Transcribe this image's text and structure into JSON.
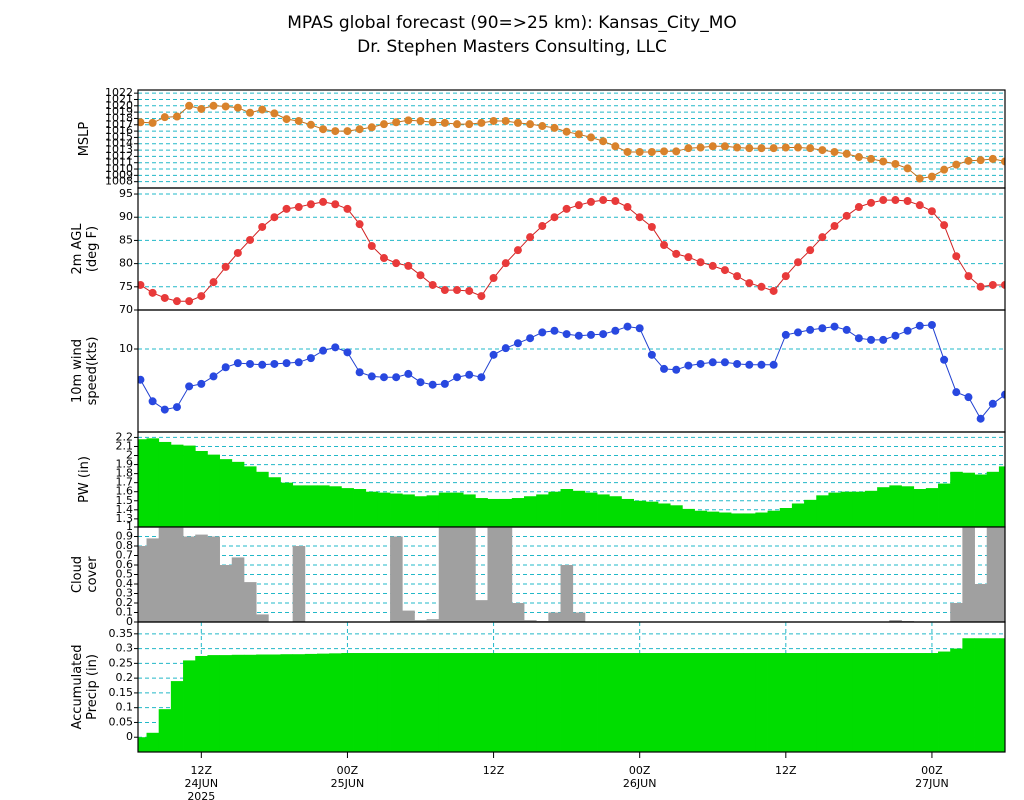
{
  "title": "MPAS global forecast (90=>25 km): Kansas_City_MO",
  "subtitle": "Dr. Stephen Masters Consulting, LLC",
  "time_axis": {
    "x": [
      7,
      8,
      9,
      10,
      11,
      12,
      13,
      14,
      15,
      16,
      17,
      18,
      19,
      20,
      21,
      22,
      23,
      24,
      25,
      26,
      27,
      28,
      29,
      30,
      31,
      32,
      33,
      34,
      35,
      36,
      37,
      38,
      39,
      40,
      41,
      42,
      43,
      44,
      45,
      46,
      47,
      48,
      49,
      50,
      51,
      52,
      53,
      54,
      55,
      56,
      57,
      58,
      59,
      60,
      61,
      62,
      63,
      64,
      65,
      66,
      67,
      68,
      69,
      70,
      71,
      72,
      73,
      74,
      75,
      76,
      77,
      78
    ],
    "xlim": [
      6.8,
      78
    ],
    "xticks": [
      {
        "value": 12,
        "label": [
          "12Z",
          "24JUN",
          "2025"
        ]
      },
      {
        "value": 24,
        "label": [
          "00Z",
          "25JUN"
        ]
      },
      {
        "value": 36,
        "label": [
          "12Z"
        ]
      },
      {
        "value": 48,
        "label": [
          "00Z",
          "26JUN"
        ]
      },
      {
        "value": 60,
        "label": [
          "12Z"
        ]
      },
      {
        "value": 72,
        "label": [
          "00Z",
          "27JUN"
        ]
      }
    ]
  },
  "chart_data": [
    {
      "type": "line",
      "ylabel": [
        "MSLP"
      ],
      "color": "#d9822b",
      "line_color": "#c0701a",
      "ylim": [
        1007,
        1022.5
      ],
      "yticks": [
        1008,
        1009,
        1010,
        1011,
        1012,
        1013,
        1014,
        1015,
        1016,
        1017,
        1018,
        1019,
        1020,
        1021,
        1022
      ],
      "grid": true,
      "xgrid": false,
      "values": [
        1017.4,
        1017.3,
        1018.2,
        1018.3,
        1020.0,
        1019.5,
        1020.0,
        1019.9,
        1019.7,
        1018.9,
        1019.4,
        1018.8,
        1017.9,
        1017.6,
        1017.0,
        1016.3,
        1016.0,
        1016.0,
        1016.3,
        1016.6,
        1017.1,
        1017.4,
        1017.7,
        1017.6,
        1017.4,
        1017.3,
        1017.1,
        1017.1,
        1017.3,
        1017.6,
        1017.6,
        1017.3,
        1017.1,
        1016.8,
        1016.5,
        1015.9,
        1015.5,
        1015.0,
        1014.4,
        1013.6,
        1012.7,
        1012.7,
        1012.7,
        1012.8,
        1012.8,
        1013.3,
        1013.4,
        1013.6,
        1013.6,
        1013.4,
        1013.3,
        1013.3,
        1013.3,
        1013.4,
        1013.4,
        1013.3,
        1013.0,
        1012.7,
        1012.4,
        1011.9,
        1011.6,
        1011.2,
        1010.8,
        1010.1,
        1008.5,
        1008.8,
        1009.9,
        1010.7,
        1011.3,
        1011.4,
        1011.6,
        1011.2
      ]
    },
    {
      "type": "line",
      "ylabel": [
        "2m AGL",
        "(deg F)"
      ],
      "color": "#e83a3a",
      "line_color": "#d02020",
      "ylim": [
        70,
        96.3
      ],
      "yticks": [
        70,
        75,
        80,
        85,
        90,
        95
      ],
      "grid": true,
      "xgrid": false,
      "values": [
        75.4,
        73.7,
        72.6,
        71.9,
        71.9,
        73.0,
        76.0,
        79.3,
        82.3,
        85.1,
        87.9,
        90.0,
        91.8,
        92.2,
        92.8,
        93.3,
        92.8,
        91.8,
        88.5,
        83.8,
        81.2,
        80.1,
        79.5,
        77.5,
        75.4,
        74.3,
        74.3,
        74.1,
        73.0,
        76.9,
        80.1,
        82.9,
        85.7,
        88.1,
        90.0,
        91.8,
        92.6,
        93.3,
        93.7,
        93.5,
        92.2,
        90.0,
        87.9,
        84.0,
        82.1,
        81.4,
        80.3,
        79.5,
        78.6,
        77.3,
        75.8,
        75.0,
        74.1,
        77.3,
        80.3,
        82.9,
        85.7,
        88.1,
        90.3,
        92.2,
        93.1,
        93.7,
        93.7,
        93.5,
        92.6,
        91.3,
        88.3,
        81.6,
        77.3,
        75.0,
        75.4,
        75.4
      ]
    },
    {
      "type": "line",
      "ylabel": [
        "10m wind",
        "speed(kts)"
      ],
      "color": "#2848e0",
      "line_color": "#2040d0",
      "ylim": [
        0,
        14.7
      ],
      "yticks": [
        10
      ],
      "grid": true,
      "xgrid": false,
      "values": [
        6.3,
        3.7,
        2.7,
        3.0,
        5.5,
        5.8,
        6.7,
        7.8,
        8.3,
        8.2,
        8.1,
        8.2,
        8.3,
        8.4,
        8.9,
        9.8,
        10.2,
        9.6,
        7.2,
        6.7,
        6.6,
        6.6,
        7.0,
        6.0,
        5.7,
        5.8,
        6.6,
        6.9,
        6.6,
        9.3,
        10.1,
        10.7,
        11.3,
        12.0,
        12.2,
        11.8,
        11.6,
        11.7,
        11.8,
        12.2,
        12.7,
        12.5,
        9.3,
        7.6,
        7.5,
        8.0,
        8.2,
        8.4,
        8.4,
        8.2,
        8.1,
        8.1,
        8.1,
        11.7,
        12.0,
        12.3,
        12.5,
        12.7,
        12.3,
        11.3,
        11.1,
        11.1,
        11.6,
        12.2,
        12.8,
        12.9,
        8.7,
        4.8,
        4.2,
        1.6,
        3.4,
        4.5
      ]
    },
    {
      "type": "bar",
      "ylabel": [
        "PW (in)"
      ],
      "color": "#00dd00",
      "ylim": [
        1.21,
        2.26
      ],
      "yticks": [
        1.3,
        1.4,
        1.5,
        1.6,
        1.7,
        1.8,
        1.9,
        2,
        2.1,
        2.2
      ],
      "grid": true,
      "xgrid": false,
      "values": [
        2.18,
        2.19,
        2.15,
        2.12,
        2.11,
        2.05,
        2.01,
        1.96,
        1.93,
        1.88,
        1.82,
        1.76,
        1.7,
        1.67,
        1.67,
        1.67,
        1.66,
        1.64,
        1.63,
        1.6,
        1.59,
        1.58,
        1.57,
        1.55,
        1.56,
        1.59,
        1.59,
        1.57,
        1.53,
        1.52,
        1.52,
        1.53,
        1.55,
        1.57,
        1.6,
        1.63,
        1.61,
        1.59,
        1.57,
        1.55,
        1.52,
        1.5,
        1.49,
        1.47,
        1.45,
        1.41,
        1.39,
        1.38,
        1.37,
        1.36,
        1.36,
        1.37,
        1.39,
        1.42,
        1.47,
        1.51,
        1.56,
        1.59,
        1.6,
        1.6,
        1.61,
        1.65,
        1.67,
        1.66,
        1.63,
        1.64,
        1.69,
        1.82,
        1.81,
        1.79,
        1.82,
        1.88
      ]
    },
    {
      "type": "bar",
      "ylabel": [
        "Cloud",
        "cover"
      ],
      "color": "#a0a0a0",
      "ylim": [
        0,
        1
      ],
      "yticks": [
        0,
        0.1,
        0.2,
        0.3,
        0.4,
        0.5,
        0.6,
        0.7,
        0.8,
        0.9,
        1
      ],
      "grid": true,
      "xgrid": false,
      "values": [
        0.8,
        0.88,
        1,
        1,
        0.9,
        0.92,
        0.9,
        0.6,
        0.68,
        0.42,
        0.08,
        0,
        0,
        0.8,
        0,
        0,
        0,
        0,
        0,
        0,
        0,
        0.9,
        0.12,
        0.02,
        0.03,
        1,
        1,
        1,
        0.23,
        1,
        1,
        0.2,
        0.02,
        0.01,
        0.1,
        0.6,
        0.1,
        0,
        0,
        0,
        0,
        0,
        0,
        0,
        0,
        0,
        0,
        0,
        0,
        0,
        0,
        0,
        0,
        0,
        0,
        0,
        0,
        0,
        0,
        0,
        0,
        0,
        0.02,
        0.01,
        0,
        0,
        0,
        0.2,
        1,
        0.4,
        1,
        1
      ]
    },
    {
      "type": "bar",
      "ylabel": [
        "Accumulated",
        "Precip (in)"
      ],
      "color": "#00dd00",
      "ylim": [
        -0.05,
        0.39
      ],
      "yticks": [
        0,
        0.05,
        0.1,
        0.15,
        0.2,
        0.25,
        0.3,
        0.35
      ],
      "grid": true,
      "xgrid": true,
      "values": [
        0,
        0.015,
        0.095,
        0.19,
        0.26,
        0.275,
        0.278,
        0.278,
        0.279,
        0.279,
        0.28,
        0.28,
        0.281,
        0.281,
        0.282,
        0.283,
        0.284,
        0.285,
        0.285,
        0.285,
        0.285,
        0.285,
        0.285,
        0.285,
        0.285,
        0.285,
        0.285,
        0.285,
        0.285,
        0.285,
        0.285,
        0.285,
        0.285,
        0.285,
        0.285,
        0.285,
        0.285,
        0.285,
        0.285,
        0.285,
        0.285,
        0.285,
        0.285,
        0.285,
        0.285,
        0.285,
        0.285,
        0.285,
        0.285,
        0.285,
        0.285,
        0.285,
        0.285,
        0.285,
        0.285,
        0.285,
        0.285,
        0.285,
        0.285,
        0.285,
        0.285,
        0.285,
        0.285,
        0.285,
        0.285,
        0.285,
        0.29,
        0.3,
        0.335,
        0.335,
        0.335,
        0.335
      ]
    }
  ]
}
